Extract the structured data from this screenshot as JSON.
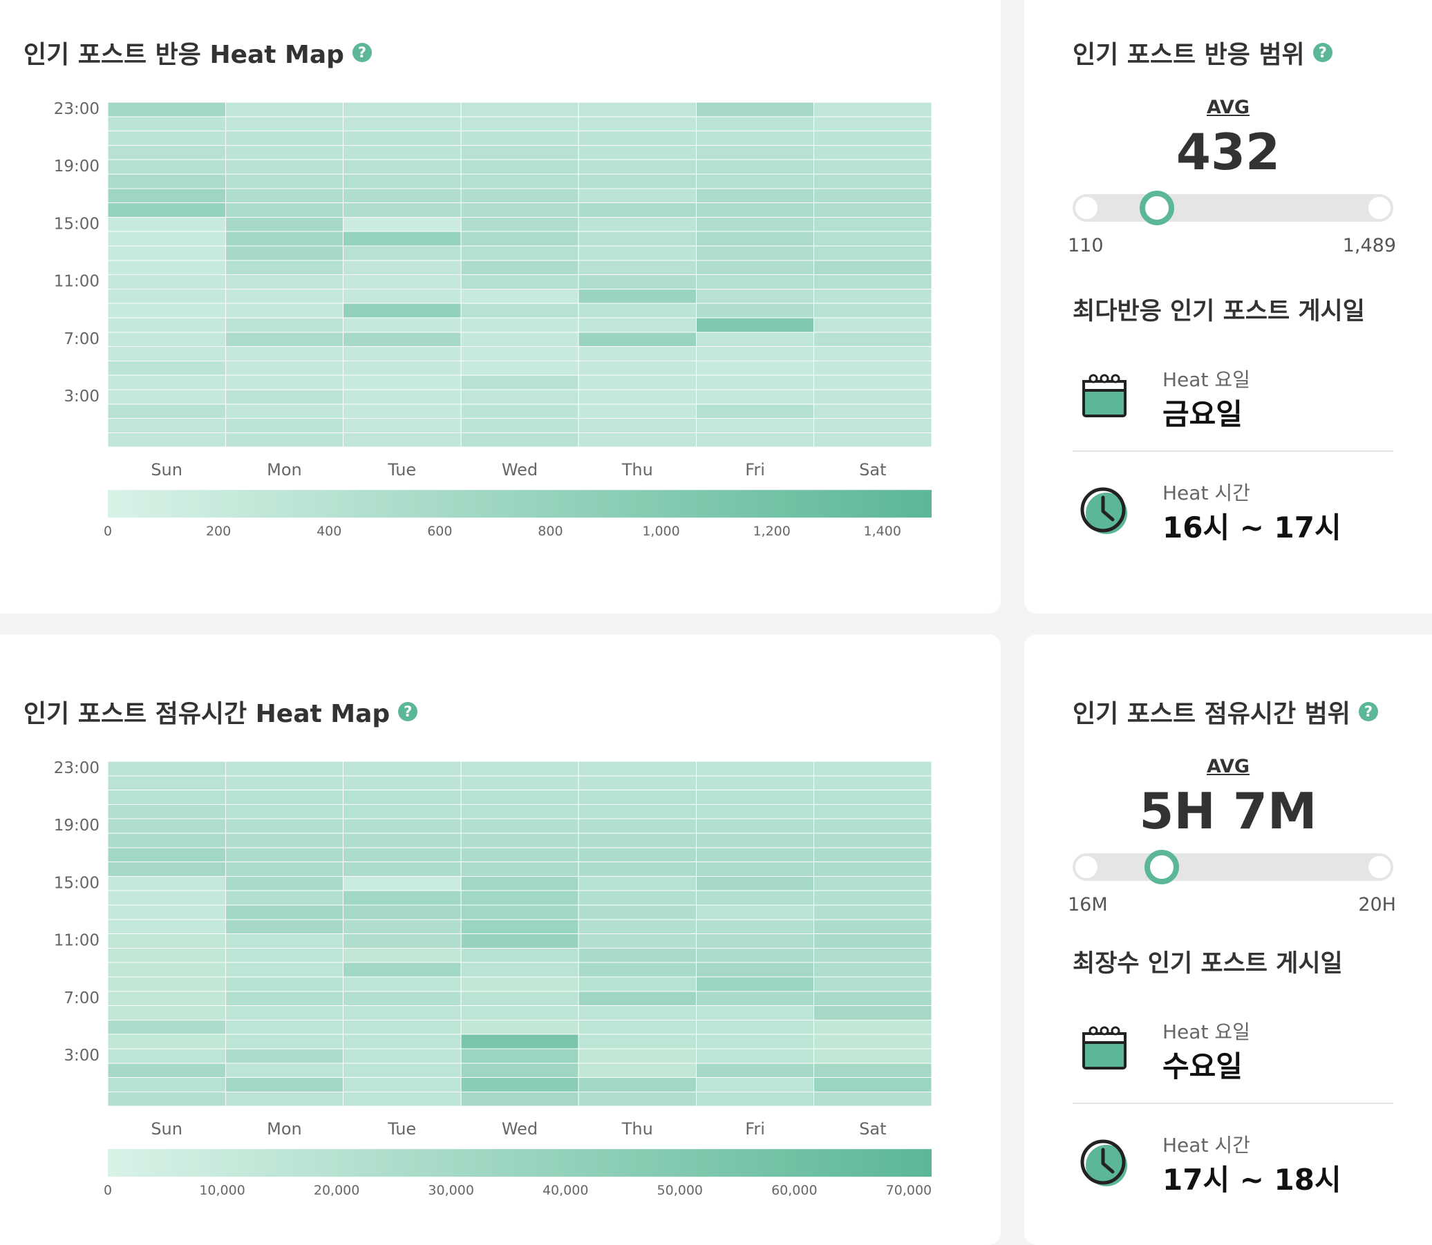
{
  "panels": {
    "reaction_heatmap": {
      "title": "인기 포스트 반응 Heat Map"
    },
    "reaction_range": {
      "title": "인기 포스트 반응 범위",
      "avg_label": "AVG",
      "avg_value": "432",
      "min_label": "110",
      "max_label": "1,489",
      "level": 0.235,
      "best_title": "최다반응 인기 포스트 게시일",
      "day_label": "Heat 요일",
      "day_value": "금요일",
      "time_label": "Heat 시간",
      "time_value": "16시 ~ 17시"
    },
    "duration_heatmap": {
      "title": "인기 포스트 점유시간 Heat Map"
    },
    "duration_range": {
      "title": "인기 포스트 점유시간 범위",
      "avg_label": "AVG",
      "avg_value": "5H 7M",
      "min_label": "16M",
      "max_label": "20H",
      "level": 0.25,
      "best_title": "최장수 인기 포스트 게시일",
      "day_label": "Heat 요일",
      "day_value": "수요일",
      "time_label": "Heat 시간",
      "time_value": "17시 ~ 18시"
    }
  },
  "icons": {
    "help": "help-icon",
    "calendar": "calendar-icon",
    "clock": "clock-icon"
  },
  "colors": {
    "low": "#d9f2e7",
    "high": "#5bb796",
    "accent": "#5bb796"
  },
  "chart_data": [
    {
      "type": "heatmap",
      "title": "인기 포스트 반응 Heat Map",
      "days": [
        "Sun",
        "Mon",
        "Tue",
        "Wed",
        "Thu",
        "Fri",
        "Sat"
      ],
      "hours_top_to_bottom": [
        "23",
        "22",
        "21",
        "20",
        "19",
        "18",
        "17",
        "16",
        "15",
        "14",
        "13",
        "12",
        "11",
        "10",
        "9",
        "8",
        "7",
        "6",
        "5",
        "4",
        "3",
        "2",
        "1",
        "0"
      ],
      "y_tick_labels": [
        "23:00",
        "19:00",
        "15:00",
        "11:00",
        "7:00",
        "3:00"
      ],
      "legend_ticks": [
        "0",
        "200",
        "400",
        "600",
        "800",
        "1,000",
        "1,200",
        "1,400"
      ],
      "scale_max": 1489,
      "values": [
        [
          650,
          300,
          300,
          300,
          300,
          620,
          300
        ],
        [
          350,
          300,
          300,
          300,
          300,
          350,
          300
        ],
        [
          350,
          350,
          350,
          350,
          350,
          350,
          350
        ],
        [
          400,
          350,
          350,
          400,
          350,
          400,
          350
        ],
        [
          450,
          400,
          400,
          450,
          400,
          450,
          400
        ],
        [
          550,
          450,
          450,
          450,
          450,
          450,
          450
        ],
        [
          700,
          500,
          500,
          500,
          350,
          550,
          500
        ],
        [
          800,
          550,
          500,
          500,
          550,
          550,
          500
        ],
        [
          200,
          600,
          180,
          500,
          350,
          500,
          450
        ],
        [
          200,
          650,
          800,
          550,
          400,
          550,
          450
        ],
        [
          200,
          600,
          400,
          450,
          350,
          500,
          450
        ],
        [
          200,
          450,
          300,
          550,
          400,
          500,
          550
        ],
        [
          250,
          300,
          250,
          450,
          500,
          450,
          450
        ],
        [
          250,
          250,
          250,
          200,
          750,
          400,
          350
        ],
        [
          200,
          250,
          850,
          400,
          350,
          500,
          400
        ],
        [
          250,
          350,
          250,
          250,
          300,
          1050,
          300
        ],
        [
          250,
          550,
          600,
          250,
          750,
          300,
          400
        ],
        [
          250,
          250,
          250,
          200,
          250,
          250,
          250
        ],
        [
          350,
          250,
          250,
          200,
          250,
          200,
          250
        ],
        [
          250,
          250,
          200,
          400,
          250,
          250,
          250
        ],
        [
          250,
          350,
          250,
          300,
          250,
          250,
          300
        ],
        [
          400,
          300,
          250,
          350,
          250,
          450,
          300
        ],
        [
          300,
          350,
          250,
          350,
          300,
          250,
          300
        ],
        [
          300,
          350,
          300,
          400,
          300,
          300,
          300
        ]
      ]
    },
    {
      "type": "heatmap",
      "title": "인기 포스트 점유시간 Heat Map",
      "days": [
        "Sun",
        "Mon",
        "Tue",
        "Wed",
        "Thu",
        "Fri",
        "Sat"
      ],
      "hours_top_to_bottom": [
        "23",
        "22",
        "21",
        "20",
        "19",
        "18",
        "17",
        "16",
        "15",
        "14",
        "13",
        "12",
        "11",
        "10",
        "9",
        "8",
        "7",
        "6",
        "5",
        "4",
        "3",
        "2",
        "1",
        "0"
      ],
      "y_tick_labels": [
        "23:00",
        "19:00",
        "15:00",
        "11:00",
        "7:00",
        "3:00"
      ],
      "legend_ticks": [
        "0",
        "10,000",
        "20,000",
        "30,000",
        "40,000",
        "50,000",
        "60,000",
        "70,000"
      ],
      "scale_max": 72000,
      "values": [
        [
          18000,
          16000,
          16000,
          16000,
          16000,
          16000,
          16000
        ],
        [
          18000,
          17000,
          17000,
          17000,
          17000,
          17000,
          17000
        ],
        [
          20000,
          20000,
          20000,
          20000,
          20000,
          20000,
          20000
        ],
        [
          22000,
          20000,
          20000,
          20000,
          20000,
          20000,
          20000
        ],
        [
          24000,
          22000,
          22000,
          22000,
          22000,
          22000,
          22000
        ],
        [
          26000,
          24000,
          24000,
          24000,
          24000,
          24000,
          24000
        ],
        [
          32000,
          26000,
          26000,
          26000,
          26000,
          26000,
          26000
        ],
        [
          30000,
          26000,
          26000,
          26000,
          26000,
          26000,
          26000
        ],
        [
          12000,
          28000,
          9000,
          32000,
          20000,
          30000,
          22000
        ],
        [
          12000,
          22000,
          32000,
          32000,
          22000,
          22000,
          22000
        ],
        [
          12000,
          32000,
          30000,
          32000,
          24000,
          18000,
          22000
        ],
        [
          12000,
          30000,
          24000,
          36000,
          22000,
          22000,
          26000
        ],
        [
          14000,
          16000,
          24000,
          38000,
          22000,
          24000,
          28000
        ],
        [
          14000,
          16000,
          14000,
          20000,
          28000,
          26000,
          24000
        ],
        [
          14000,
          16000,
          32000,
          18000,
          28000,
          30000,
          24000
        ],
        [
          14000,
          20000,
          16000,
          14000,
          20000,
          36000,
          22000
        ],
        [
          14000,
          22000,
          22000,
          18000,
          34000,
          28000,
          28000
        ],
        [
          14000,
          16000,
          16000,
          16000,
          16000,
          16000,
          30000
        ],
        [
          26000,
          16000,
          16000,
          14000,
          16000,
          16000,
          14000
        ],
        [
          14000,
          16000,
          16000,
          55000,
          16000,
          16000,
          14000
        ],
        [
          16000,
          26000,
          16000,
          36000,
          14000,
          16000,
          14000
        ],
        [
          30000,
          16000,
          16000,
          34000,
          14000,
          30000,
          30000
        ],
        [
          20000,
          32000,
          16000,
          45000,
          32000,
          16000,
          36000
        ],
        [
          22000,
          18000,
          16000,
          30000,
          24000,
          20000,
          22000
        ]
      ]
    }
  ]
}
